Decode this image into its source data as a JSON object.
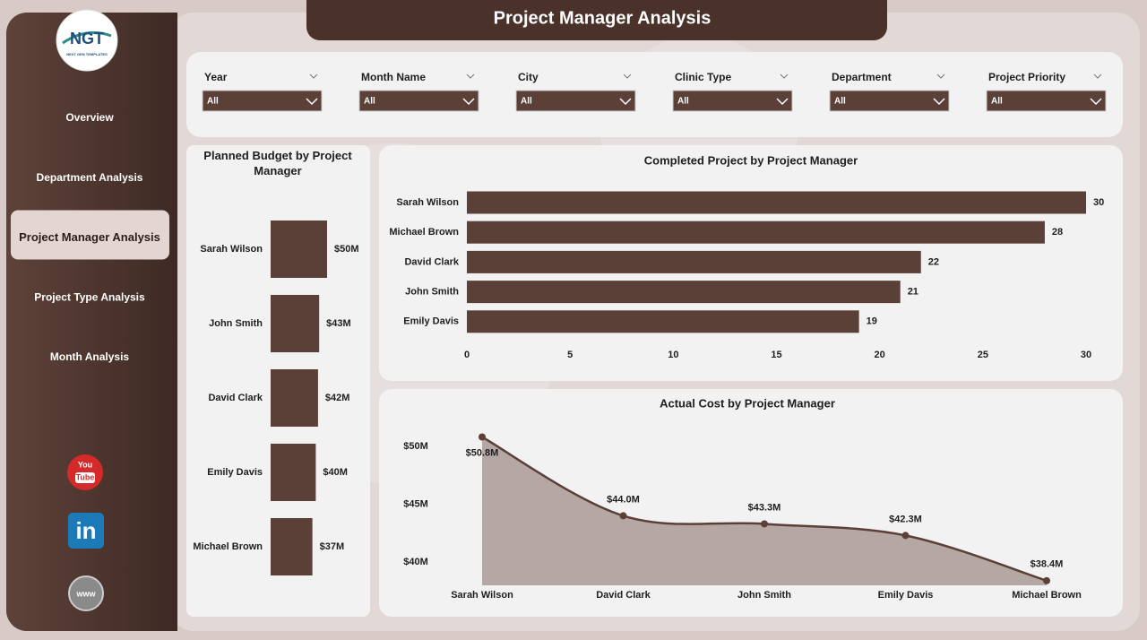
{
  "header": {
    "title": "Project Manager Analysis"
  },
  "logo": {
    "text": "NGT",
    "subtitle": "NEXT GEN TEMPLATES"
  },
  "nav": [
    {
      "label": "Overview"
    },
    {
      "label": "Department Analysis"
    },
    {
      "label": "Project Manager Analysis",
      "active": true
    },
    {
      "label": "Project Type Analysis"
    },
    {
      "label": "Month Analysis"
    }
  ],
  "social": {
    "youtube": [
      "You",
      "Tube"
    ],
    "linkedin": "in",
    "website": "www"
  },
  "filters": [
    {
      "label": "Year",
      "value": "All"
    },
    {
      "label": "Month Name",
      "value": "All"
    },
    {
      "label": "City",
      "value": "All"
    },
    {
      "label": "Clinic Type",
      "value": "All"
    },
    {
      "label": "Department",
      "value": "All"
    },
    {
      "label": "Project Priority",
      "value": "All"
    }
  ],
  "chart_data": [
    {
      "type": "bar",
      "orientation": "horizontal",
      "title": "Planned Budget by Project Manager",
      "categories": [
        "Sarah Wilson",
        "John Smith",
        "David Clark",
        "Emily Davis",
        "Michael Brown"
      ],
      "values": [
        50,
        43,
        42,
        40,
        37
      ],
      "value_labels": [
        "$50M",
        "$43M",
        "$42M",
        "$40M",
        "$37M"
      ],
      "color": "#5b4038"
    },
    {
      "type": "bar",
      "orientation": "horizontal",
      "title": "Completed Project by Project Manager",
      "categories": [
        "Sarah Wilson",
        "Michael Brown",
        "David Clark",
        "John Smith",
        "Emily Davis"
      ],
      "values": [
        30,
        28,
        22,
        21,
        19
      ],
      "color": "#5b4038",
      "xlim": [
        0,
        30
      ],
      "xticks": [
        0,
        5,
        10,
        15,
        20,
        25,
        30
      ]
    },
    {
      "type": "area",
      "title": "Actual Cost by Project Manager",
      "categories": [
        "Sarah Wilson",
        "David Clark",
        "John Smith",
        "Emily Davis",
        "Michael Brown"
      ],
      "values": [
        50.8,
        44.0,
        43.3,
        42.3,
        38.4
      ],
      "value_labels": [
        "$50.8M",
        "$44.0M",
        "$43.3M",
        "$42.3M",
        "$38.4M"
      ],
      "color": "#5b4038",
      "fill": "#b5a8a4",
      "ylim": [
        38,
        52
      ],
      "yticks": [
        {
          "value": 40,
          "label": "$40M"
        },
        {
          "value": 45,
          "label": "$45M"
        },
        {
          "value": 50,
          "label": "$50M"
        }
      ]
    }
  ]
}
